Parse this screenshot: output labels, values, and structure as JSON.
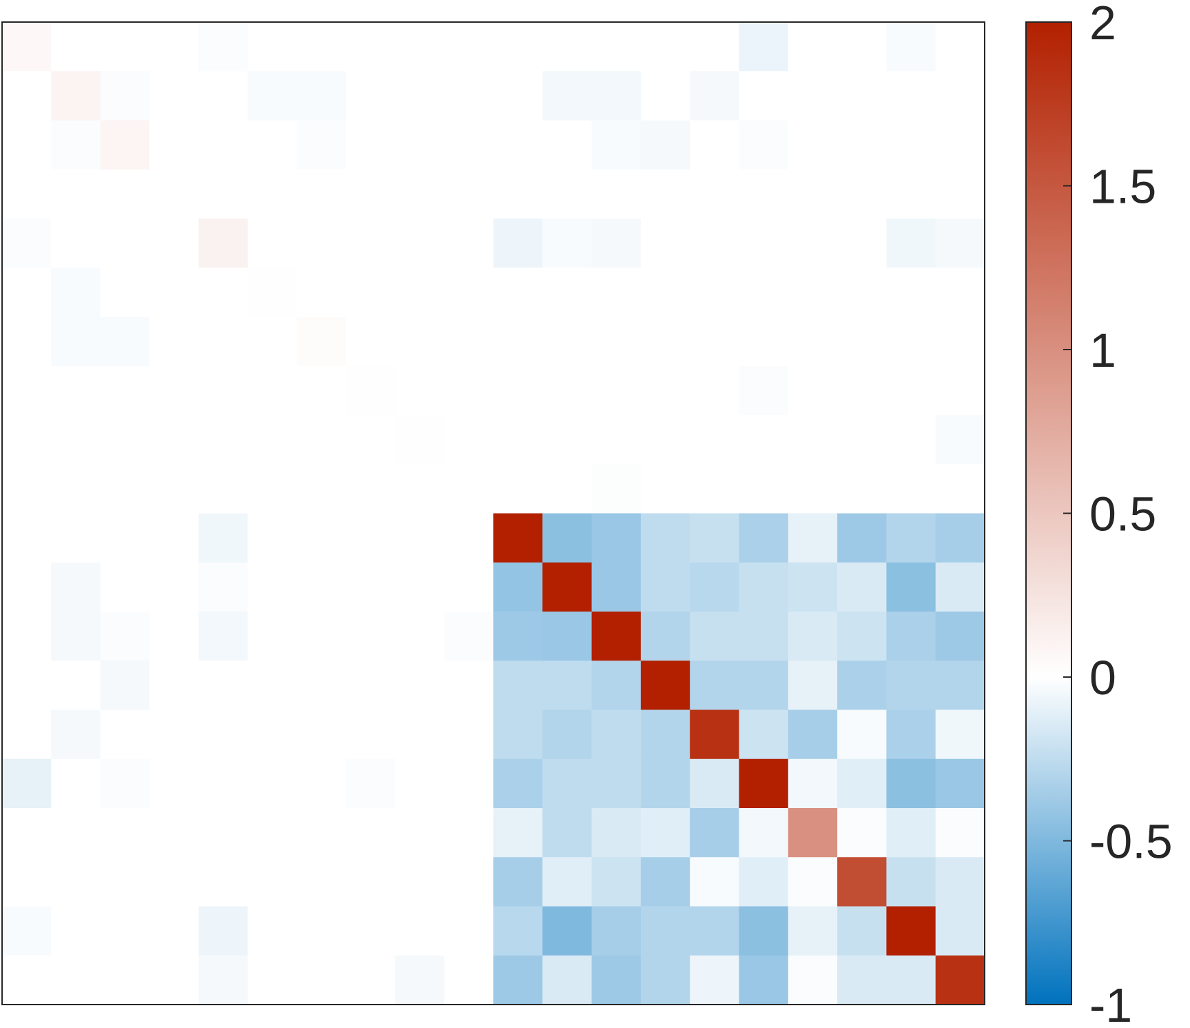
{
  "chart_data": {
    "type": "heatmap",
    "title": "",
    "xlabel": "",
    "ylabel": "",
    "rows": 20,
    "cols": 20,
    "colorbar": {
      "range": [
        -1,
        2
      ],
      "ticks": [
        2,
        1.5,
        1,
        0.5,
        0,
        -0.5,
        -1
      ],
      "tick_labels": [
        "2",
        "1.5",
        "1",
        "0.5",
        "0",
        "-0.5",
        "-1"
      ],
      "color_low": "#0072bd",
      "color_mid": "#ffffff",
      "color_high": "#b22000"
    },
    "values": [
      [
        0.06,
        0,
        0,
        0,
        -0.02,
        0,
        0,
        0,
        0,
        0,
        0,
        0,
        0,
        0,
        0,
        -0.08,
        0,
        0,
        -0.03,
        0
      ],
      [
        0,
        0.1,
        -0.02,
        0,
        0,
        -0.03,
        -0.03,
        0,
        0,
        0,
        0,
        -0.05,
        -0.05,
        0,
        -0.04,
        0,
        0,
        0,
        0,
        0
      ],
      [
        0,
        -0.02,
        0.09,
        0,
        0,
        0,
        -0.02,
        0,
        0,
        0,
        0,
        0,
        -0.03,
        -0.04,
        0,
        -0.02,
        0,
        0,
        0,
        0
      ],
      [
        0,
        0,
        0,
        0,
        0,
        0,
        0,
        0,
        0,
        0,
        0,
        0,
        0,
        0,
        0,
        0,
        0,
        0,
        0,
        0
      ],
      [
        -0.02,
        0,
        0,
        0,
        0.12,
        0,
        0,
        0,
        0,
        0,
        -0.07,
        -0.03,
        -0.04,
        0,
        0,
        0,
        0,
        0,
        -0.06,
        -0.04
      ],
      [
        0,
        -0.03,
        0,
        0,
        0,
        0.01,
        0,
        0,
        0,
        0,
        0,
        0,
        0,
        0,
        0,
        0,
        0,
        0,
        0,
        0
      ],
      [
        0,
        -0.03,
        -0.03,
        0,
        0,
        0,
        0.03,
        0,
        0,
        0,
        0,
        0,
        0,
        0,
        0,
        0,
        0,
        0,
        0,
        0
      ],
      [
        0,
        0,
        0,
        0,
        0,
        0,
        0,
        0.01,
        0,
        0,
        0,
        0,
        0,
        0,
        0,
        -0.02,
        0,
        0,
        0,
        0
      ],
      [
        0,
        0,
        0,
        0,
        0,
        0,
        0,
        0,
        0.01,
        0,
        0,
        0,
        0,
        0,
        0,
        0,
        0,
        0,
        0,
        -0.03
      ],
      [
        0,
        0,
        0,
        0,
        0,
        0,
        0,
        0,
        0,
        0,
        0,
        0,
        -0.01,
        0,
        0,
        0,
        0,
        0,
        0,
        0
      ],
      [
        0,
        0,
        0,
        0,
        -0.06,
        0,
        0,
        0,
        0,
        0,
        2.0,
        -0.45,
        -0.4,
        -0.25,
        -0.22,
        -0.33,
        -0.1,
        -0.38,
        -0.3,
        -0.35
      ],
      [
        0,
        -0.04,
        0,
        0,
        -0.02,
        0,
        0,
        0,
        0,
        0,
        -0.42,
        2.0,
        -0.4,
        -0.25,
        -0.28,
        -0.22,
        -0.2,
        -0.15,
        -0.45,
        -0.15
      ],
      [
        0,
        -0.04,
        -0.02,
        0,
        -0.05,
        0,
        0,
        0,
        0,
        -0.02,
        -0.38,
        -0.4,
        2.0,
        -0.3,
        -0.22,
        -0.22,
        -0.15,
        -0.2,
        -0.33,
        -0.38
      ],
      [
        0,
        0,
        -0.04,
        0,
        0,
        0,
        0,
        0,
        0,
        0,
        -0.25,
        -0.25,
        -0.3,
        2.0,
        -0.3,
        -0.3,
        -0.1,
        -0.33,
        -0.3,
        -0.3
      ],
      [
        0,
        -0.04,
        0,
        0,
        0,
        0,
        0,
        0,
        0,
        0,
        -0.25,
        -0.3,
        -0.25,
        -0.3,
        1.85,
        -0.2,
        -0.35,
        -0.03,
        -0.33,
        -0.06
      ],
      [
        -0.1,
        0,
        -0.02,
        0,
        0,
        0,
        0,
        -0.02,
        0,
        0,
        -0.33,
        -0.25,
        -0.25,
        -0.3,
        -0.15,
        2.0,
        -0.05,
        -0.12,
        -0.45,
        -0.4
      ],
      [
        0,
        0,
        0,
        0,
        0,
        0,
        0,
        0,
        0,
        0,
        -0.1,
        -0.25,
        -0.15,
        -0.12,
        -0.35,
        -0.05,
        1.0,
        -0.02,
        -0.12,
        -0.02
      ],
      [
        0,
        0,
        0,
        0,
        0,
        0,
        0,
        0,
        0,
        0,
        -0.35,
        -0.12,
        -0.2,
        -0.35,
        -0.03,
        -0.12,
        -0.02,
        1.6,
        -0.22,
        -0.15
      ],
      [
        -0.03,
        0,
        0,
        0,
        -0.07,
        0,
        0,
        0,
        0,
        0,
        -0.28,
        -0.5,
        -0.35,
        -0.3,
        -0.3,
        -0.45,
        -0.1,
        -0.22,
        2.0,
        -0.15
      ],
      [
        0,
        0,
        0,
        0,
        -0.04,
        0,
        0,
        0,
        -0.04,
        0,
        -0.38,
        -0.15,
        -0.38,
        -0.3,
        -0.07,
        -0.4,
        -0.02,
        -0.15,
        -0.15,
        1.85
      ]
    ]
  }
}
